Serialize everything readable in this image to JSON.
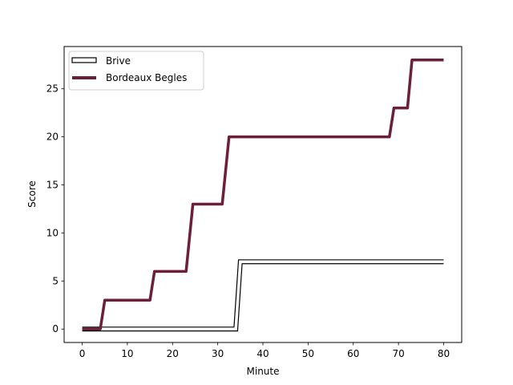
{
  "chart_data": {
    "type": "line",
    "title": "",
    "xlabel": "Minute",
    "ylabel": "Score",
    "xlim": [
      -4.0,
      84.0
    ],
    "ylim": [
      -1.4,
      29.4
    ],
    "xticks": [
      0,
      10,
      20,
      30,
      40,
      50,
      60,
      70,
      80
    ],
    "yticks": [
      0,
      5,
      10,
      15,
      20,
      25
    ],
    "grid": false,
    "legend_position": "upper-left",
    "series": [
      {
        "name": "Brive",
        "style": "outlined",
        "color": "#000000",
        "fill": "#ffffff",
        "points": [
          [
            0,
            0
          ],
          [
            4,
            0
          ],
          [
            34,
            0
          ],
          [
            35,
            7
          ],
          [
            80,
            7
          ]
        ]
      },
      {
        "name": "Bordeaux Begles",
        "style": "solid",
        "color": "#6b1f3a",
        "points": [
          [
            0,
            0
          ],
          [
            4,
            0
          ],
          [
            5,
            3
          ],
          [
            15,
            3
          ],
          [
            16,
            6
          ],
          [
            23,
            6
          ],
          [
            24.5,
            13
          ],
          [
            31,
            13
          ],
          [
            32.5,
            20
          ],
          [
            68,
            20
          ],
          [
            69,
            23
          ],
          [
            72,
            23
          ],
          [
            73,
            28
          ],
          [
            80,
            28
          ]
        ]
      }
    ]
  }
}
